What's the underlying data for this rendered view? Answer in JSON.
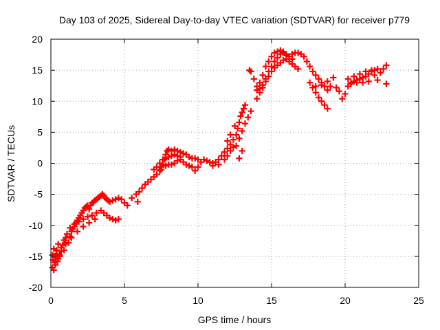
{
  "chart_data": {
    "type": "scatter",
    "title": "Day 103 of 2025, Sidereal Day-to-day VTEC variation (SDTVAR) for receiver p779",
    "xlabel": "GPS time / hours",
    "ylabel": "SDTVAR / TECUs",
    "xlim": [
      0,
      25
    ],
    "ylim": [
      -20,
      20
    ],
    "xticks": [
      0,
      5,
      10,
      15,
      20,
      25
    ],
    "yticks": [
      -20,
      -15,
      -10,
      -5,
      0,
      5,
      10,
      15,
      20
    ],
    "grid": true,
    "legend": "none",
    "marker": "plus",
    "colors": {
      "series": "#ff0000",
      "grid": "#a0a0a0",
      "axes": "#000000"
    },
    "series": [
      {
        "points": [
          [
            0.1,
            -16.8
          ],
          [
            0.2,
            -17.2
          ],
          [
            0.25,
            -16.0
          ],
          [
            0.3,
            -15.2
          ],
          [
            0.35,
            -14.6
          ],
          [
            0.4,
            -14.0
          ],
          [
            0.5,
            -15.4
          ],
          [
            0.6,
            -14.8
          ],
          [
            0.7,
            -13.6
          ],
          [
            0.8,
            -13.2
          ],
          [
            0.9,
            -12.4
          ],
          [
            1.0,
            -12.0
          ],
          [
            1.1,
            -11.4
          ],
          [
            1.2,
            -12.8
          ],
          [
            1.3,
            -11.8
          ],
          [
            1.4,
            -11.0
          ],
          [
            1.5,
            -10.6
          ],
          [
            1.6,
            -10.2
          ],
          [
            1.7,
            -9.6
          ],
          [
            1.8,
            -9.2
          ],
          [
            1.9,
            -8.8
          ],
          [
            2.0,
            -8.4
          ],
          [
            2.1,
            -8.0
          ],
          [
            2.2,
            -7.6
          ],
          [
            2.3,
            -7.2
          ],
          [
            2.4,
            -7.0
          ],
          [
            2.5,
            -6.8
          ],
          [
            2.6,
            -7.4
          ],
          [
            2.7,
            -6.8
          ],
          [
            2.8,
            -6.4
          ],
          [
            2.9,
            -6.2
          ],
          [
            3.0,
            -6.0
          ],
          [
            3.1,
            -5.8
          ],
          [
            3.2,
            -5.6
          ],
          [
            3.3,
            -5.4
          ],
          [
            3.4,
            -5.2
          ],
          [
            3.5,
            -5.0
          ],
          [
            3.6,
            -5.2
          ],
          [
            3.7,
            -5.6
          ],
          [
            3.8,
            -5.8
          ],
          [
            3.9,
            -6.0
          ],
          [
            4.0,
            -6.2
          ],
          [
            4.2,
            -6.0
          ],
          [
            4.4,
            -5.8
          ],
          [
            4.6,
            -5.6
          ],
          [
            4.8,
            -5.8
          ],
          [
            1.3,
            -10.4
          ],
          [
            1.6,
            -9.8
          ],
          [
            1.9,
            -9.4
          ],
          [
            2.2,
            -9.0
          ],
          [
            2.5,
            -8.6
          ],
          [
            2.8,
            -8.4
          ],
          [
            3.1,
            -8.0
          ],
          [
            3.4,
            -7.6
          ],
          [
            3.6,
            -8.0
          ],
          [
            3.8,
            -8.4
          ],
          [
            4.0,
            -8.8
          ],
          [
            4.2,
            -9.0
          ],
          [
            4.4,
            -9.2
          ],
          [
            4.6,
            -9.0
          ],
          [
            1.0,
            -13.0
          ],
          [
            1.4,
            -12.0
          ],
          [
            1.8,
            -11.0
          ],
          [
            2.2,
            -10.2
          ],
          [
            2.6,
            -9.6
          ],
          [
            3.0,
            -9.0
          ],
          [
            0.3,
            -15.8
          ],
          [
            0.6,
            -15.0
          ],
          [
            0.9,
            -14.0
          ],
          [
            0.2,
            -13.8
          ],
          [
            0.5,
            -13.0
          ],
          [
            0.1,
            -14.8
          ],
          [
            0.15,
            -15.6
          ],
          [
            0.3,
            -16.4
          ],
          [
            0.45,
            -15.8
          ],
          [
            0.7,
            -14.2
          ],
          [
            5.0,
            -6.4
          ],
          [
            5.2,
            -6.8
          ],
          [
            5.5,
            -5.6
          ],
          [
            5.8,
            -5.0
          ],
          [
            5.9,
            -6.2
          ],
          [
            6.0,
            -4.6
          ],
          [
            6.2,
            -4.0
          ],
          [
            6.4,
            -3.4
          ],
          [
            6.6,
            -3.0
          ],
          [
            6.8,
            -2.6
          ],
          [
            7.0,
            -2.2
          ],
          [
            7.2,
            -1.8
          ],
          [
            7.4,
            -1.2
          ],
          [
            7.5,
            -0.6
          ],
          [
            7.6,
            -0.2
          ],
          [
            7.7,
            0.6
          ],
          [
            7.8,
            1.4
          ],
          [
            7.9,
            2.0
          ],
          [
            8.0,
            2.2
          ],
          [
            8.2,
            2.0
          ],
          [
            8.4,
            2.2
          ],
          [
            8.6,
            2.0
          ],
          [
            8.8,
            1.8
          ],
          [
            9.0,
            1.6
          ],
          [
            9.2,
            1.4
          ],
          [
            9.4,
            1.0
          ],
          [
            9.6,
            0.8
          ],
          [
            9.8,
            0.8
          ],
          [
            10.0,
            0.6
          ],
          [
            7.0,
            -1.0
          ],
          [
            7.2,
            -0.6
          ],
          [
            7.4,
            0.0
          ],
          [
            7.6,
            0.6
          ],
          [
            7.8,
            0.8
          ],
          [
            8.0,
            1.0
          ],
          [
            8.2,
            1.2
          ],
          [
            8.4,
            1.4
          ],
          [
            8.6,
            1.2
          ],
          [
            8.8,
            1.0
          ],
          [
            7.5,
            -1.0
          ],
          [
            7.8,
            -0.4
          ],
          [
            8.0,
            -0.2
          ],
          [
            8.2,
            -0.2
          ],
          [
            8.4,
            0.0
          ],
          [
            8.6,
            0.4
          ],
          [
            8.8,
            0.6
          ],
          [
            9.0,
            0.2
          ],
          [
            9.2,
            -0.2
          ],
          [
            9.4,
            -0.4
          ],
          [
            9.6,
            -0.6
          ],
          [
            9.8,
            -1.2
          ],
          [
            10.0,
            -0.6
          ],
          [
            10.2,
            0.2
          ],
          [
            10.4,
            0.6
          ],
          [
            10.6,
            0.4
          ],
          [
            10.8,
            0.2
          ],
          [
            11.0,
            0.0
          ],
          [
            11.2,
            0.2
          ],
          [
            11.4,
            0.6
          ],
          [
            11.6,
            1.2
          ],
          [
            11.8,
            1.8
          ],
          [
            12.0,
            2.4
          ],
          [
            12.2,
            3.0
          ],
          [
            11.0,
            -0.4
          ],
          [
            11.4,
            -0.2
          ],
          [
            11.8,
            0.6
          ],
          [
            12.0,
            1.2
          ],
          [
            12.2,
            2.0
          ],
          [
            12.4,
            2.6
          ],
          [
            12.0,
            3.6
          ],
          [
            12.4,
            3.8
          ],
          [
            12.6,
            4.6
          ],
          [
            12.7,
            5.6
          ],
          [
            12.8,
            6.6
          ],
          [
            12.9,
            7.6
          ],
          [
            13.0,
            8.2
          ],
          [
            13.1,
            8.8
          ],
          [
            13.2,
            9.4
          ],
          [
            12.6,
            2.8
          ],
          [
            12.8,
            4.0
          ],
          [
            13.0,
            5.2
          ],
          [
            13.2,
            6.4
          ],
          [
            13.4,
            7.4
          ],
          [
            13.6,
            8.4
          ],
          [
            13.6,
            14.8
          ],
          [
            13.8,
            13.6
          ],
          [
            14.0,
            12.4
          ],
          [
            14.2,
            12.0
          ],
          [
            14.4,
            12.6
          ],
          [
            14.6,
            13.6
          ],
          [
            14.8,
            14.8
          ],
          [
            15.0,
            15.6
          ],
          [
            15.2,
            16.4
          ],
          [
            15.4,
            17.0
          ],
          [
            15.6,
            17.6
          ],
          [
            15.8,
            17.8
          ],
          [
            16.0,
            17.6
          ],
          [
            16.2,
            17.2
          ],
          [
            16.4,
            16.8
          ],
          [
            14.0,
            10.4
          ],
          [
            14.2,
            11.4
          ],
          [
            14.4,
            12.2
          ],
          [
            14.6,
            13.2
          ],
          [
            14.8,
            14.0
          ],
          [
            15.0,
            14.8
          ],
          [
            15.2,
            15.4
          ],
          [
            15.4,
            15.8
          ],
          [
            15.6,
            16.2
          ],
          [
            15.8,
            16.6
          ],
          [
            16.0,
            16.8
          ],
          [
            16.2,
            16.4
          ],
          [
            16.4,
            16.0
          ],
          [
            16.6,
            15.6
          ],
          [
            16.8,
            15.2
          ],
          [
            14.0,
            11.8
          ],
          [
            14.2,
            13.0
          ],
          [
            14.4,
            14.2
          ],
          [
            14.6,
            15.6
          ],
          [
            14.8,
            16.4
          ],
          [
            15.0,
            17.2
          ],
          [
            15.2,
            17.8
          ],
          [
            15.4,
            18.0
          ],
          [
            15.6,
            18.2
          ],
          [
            15.8,
            18.0
          ],
          [
            16.0,
            17.4
          ],
          [
            16.4,
            17.6
          ],
          [
            16.6,
            17.8
          ],
          [
            16.8,
            17.8
          ],
          [
            17.0,
            17.6
          ],
          [
            17.2,
            17.2
          ],
          [
            17.4,
            16.4
          ],
          [
            17.6,
            15.6
          ],
          [
            17.8,
            14.8
          ],
          [
            18.0,
            14.2
          ],
          [
            18.2,
            13.6
          ],
          [
            18.4,
            13.0
          ],
          [
            18.6,
            12.4
          ],
          [
            18.8,
            11.8
          ],
          [
            19.0,
            12.4
          ],
          [
            17.6,
            13.0
          ],
          [
            17.8,
            12.2
          ],
          [
            18.0,
            11.4
          ],
          [
            18.2,
            10.6
          ],
          [
            18.4,
            10.0
          ],
          [
            18.6,
            9.4
          ],
          [
            18.8,
            8.8
          ],
          [
            18.0,
            12.4
          ],
          [
            18.4,
            12.6
          ],
          [
            18.8,
            13.2
          ],
          [
            19.2,
            13.8
          ],
          [
            19.4,
            12.2
          ],
          [
            19.6,
            11.6
          ],
          [
            19.8,
            10.4
          ],
          [
            20.0,
            11.2
          ],
          [
            20.2,
            12.4
          ],
          [
            20.4,
            12.8
          ],
          [
            20.6,
            13.2
          ],
          [
            20.8,
            13.4
          ],
          [
            21.0,
            13.6
          ],
          [
            21.2,
            13.8
          ],
          [
            21.4,
            14.0
          ],
          [
            21.6,
            14.4
          ],
          [
            21.8,
            14.8
          ],
          [
            22.0,
            15.0
          ],
          [
            22.2,
            15.2
          ],
          [
            20.2,
            13.6
          ],
          [
            20.6,
            14.0
          ],
          [
            21.0,
            14.4
          ],
          [
            21.4,
            14.8
          ],
          [
            21.8,
            15.0
          ],
          [
            22.0,
            14.2
          ],
          [
            22.2,
            13.4
          ],
          [
            20.4,
            13.0
          ],
          [
            20.8,
            13.0
          ],
          [
            21.2,
            13.0
          ],
          [
            21.6,
            13.2
          ],
          [
            22.4,
            14.6
          ],
          [
            22.6,
            15.2
          ],
          [
            22.8,
            15.8
          ],
          [
            22.8,
            12.8
          ],
          [
            13.5,
            15.0
          ],
          [
            12.8,
            0.8
          ],
          [
            13.0,
            2.0
          ],
          [
            12.2,
            4.6
          ],
          [
            12.5,
            6.0
          ]
        ]
      }
    ]
  }
}
